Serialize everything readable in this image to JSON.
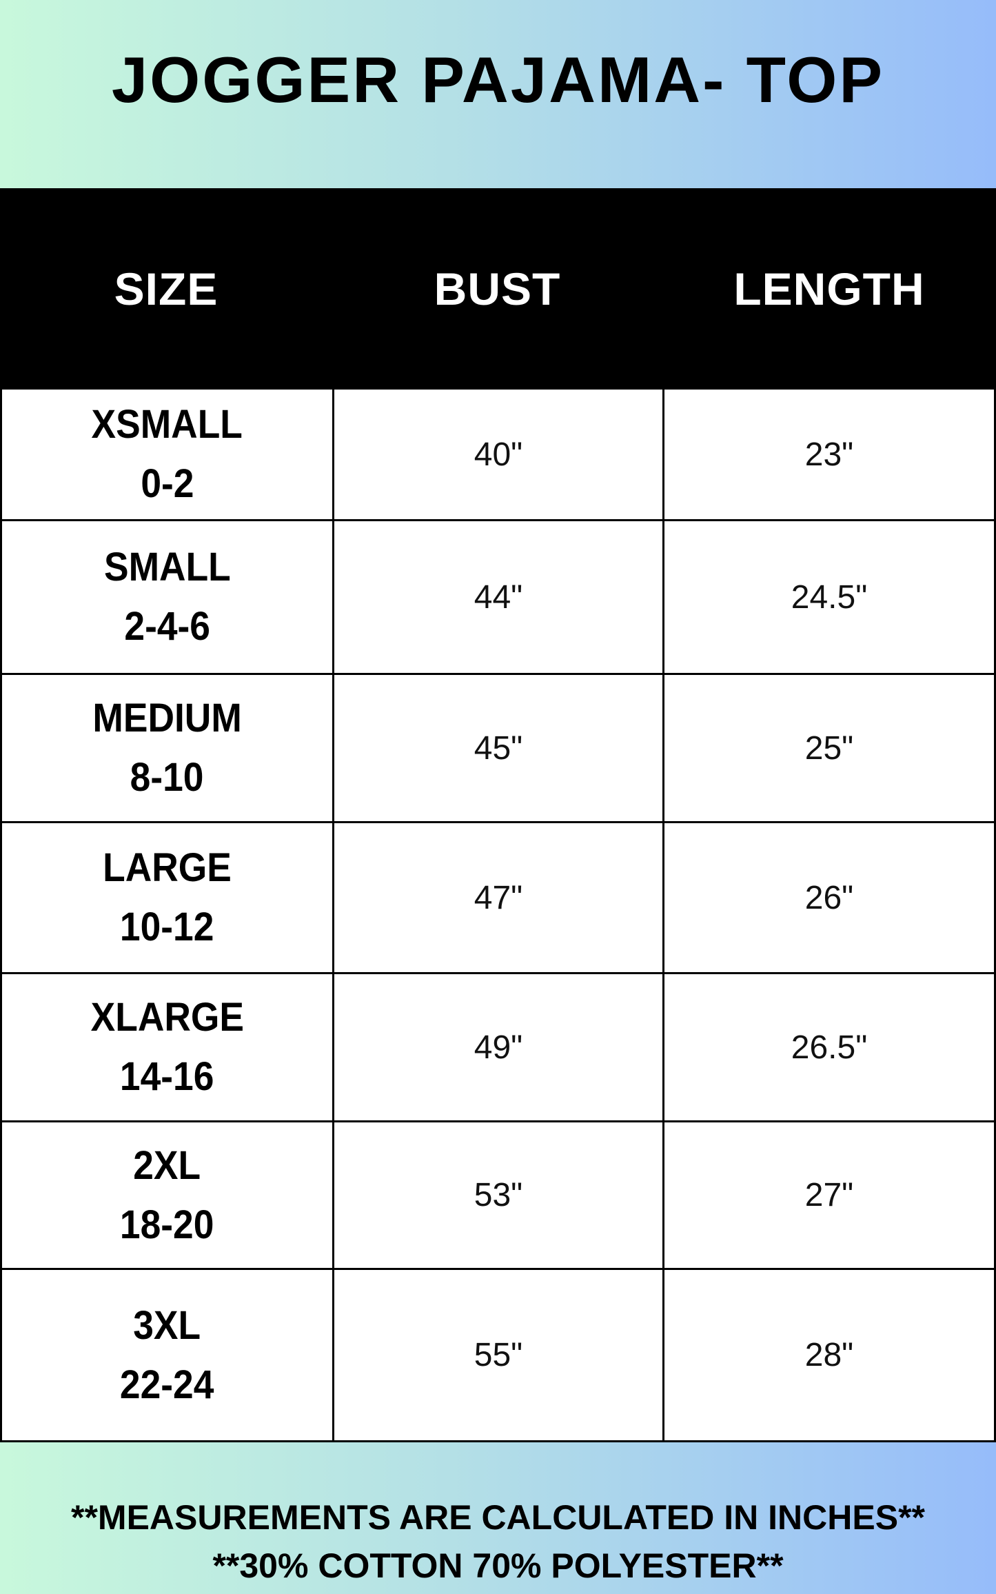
{
  "title": "JOGGER PAJAMA- TOP",
  "table": {
    "headers": [
      "SIZE",
      "BUST",
      "LENGTH"
    ],
    "rows": [
      {
        "size": "XSMALL",
        "range": "0-2",
        "bust": "40\"",
        "length": "23\""
      },
      {
        "size": "SMALL",
        "range": "2-4-6",
        "bust": "44\"",
        "length": "24.5\""
      },
      {
        "size": "MEDIUM",
        "range": "8-10",
        "bust": "45\"",
        "length": "25\""
      },
      {
        "size": "LARGE",
        "range": "10-12",
        "bust": "47\"",
        "length": "26\""
      },
      {
        "size": "XLARGE",
        "range": "14-16",
        "bust": "49\"",
        "length": "26.5\""
      },
      {
        "size": "2XL",
        "range": "18-20",
        "bust": "53\"",
        "length": "27\""
      },
      {
        "size": "3XL",
        "range": "22-24",
        "bust": "55\"",
        "length": "28\""
      }
    ]
  },
  "footer": {
    "line1": "**MEASUREMENTS ARE CALCULATED IN INCHES**",
    "line2": "**30% COTTON 70% POLYESTER**"
  },
  "colors": {
    "gradient_start": "#c8f8dc",
    "gradient_end": "#96bcfa",
    "header_bg": "#000000"
  }
}
